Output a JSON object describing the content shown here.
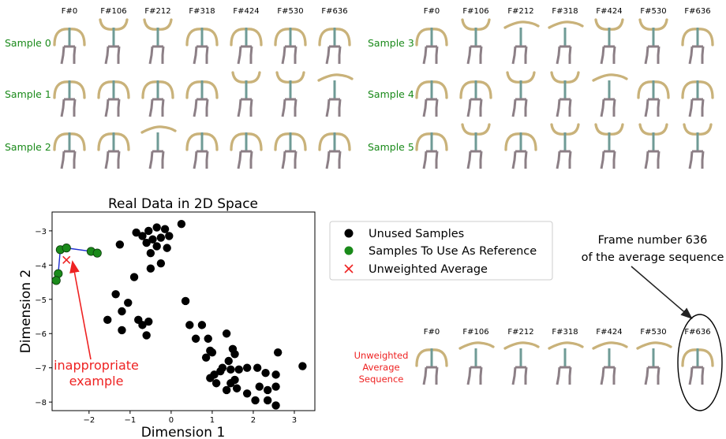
{
  "frame_labels": [
    "F#0",
    "F#106",
    "F#212",
    "F#318",
    "F#424",
    "F#530",
    "F#636"
  ],
  "samples_left": [
    "Sample 0",
    "Sample 1",
    "Sample 2"
  ],
  "samples_right": [
    "Sample 3",
    "Sample 4",
    "Sample 5"
  ],
  "average_sequence_label": [
    "Unweighted",
    "Average",
    "Sequence"
  ],
  "callout": {
    "line1": "Frame number 636",
    "line2": "of the average sequence"
  },
  "annotation": {
    "line1": "inappropriate",
    "line2": "example"
  },
  "colors": {
    "green_text": "#1a8a1a",
    "red_text": "#ee2222",
    "arms": "#c9b27a",
    "spine": "#6f9b96",
    "legs": "#8c7f86",
    "link": "#1f2fd0"
  },
  "chart_data": {
    "type": "scatter",
    "title": "Real Data in 2D Space",
    "xlabel": "Dimension 1",
    "ylabel": "Dimension 2",
    "xlim": [
      -2.9,
      3.5
    ],
    "ylim": [
      -8.25,
      -2.45
    ],
    "xticks": [
      "−2",
      "−1",
      "0",
      "1",
      "2",
      "3"
    ],
    "xtick_values": [
      -2,
      -1,
      0,
      1,
      2,
      3
    ],
    "yticks": [
      "−3",
      "−4",
      "−5",
      "−6",
      "−7",
      "−8"
    ],
    "ytick_values": [
      -3,
      -4,
      -5,
      -6,
      -7,
      -8
    ],
    "legend_position": "outside-right",
    "series": [
      {
        "name": "Unused Samples",
        "color": "#000000",
        "marker": "circle",
        "points": [
          [
            0.25,
            -2.8
          ],
          [
            -0.85,
            -3.05
          ],
          [
            -0.55,
            -3.0
          ],
          [
            -0.35,
            -2.9
          ],
          [
            -0.15,
            -2.95
          ],
          [
            -0.7,
            -3.15
          ],
          [
            -0.45,
            -3.25
          ],
          [
            -0.25,
            -3.2
          ],
          [
            -0.05,
            -3.15
          ],
          [
            -0.6,
            -3.35
          ],
          [
            -1.25,
            -3.4
          ],
          [
            -0.35,
            -3.45
          ],
          [
            -0.5,
            -3.65
          ],
          [
            -0.1,
            -3.5
          ],
          [
            -0.25,
            -3.95
          ],
          [
            -0.9,
            -4.35
          ],
          [
            -0.5,
            -4.1
          ],
          [
            -1.35,
            -4.85
          ],
          [
            -1.05,
            -5.1
          ],
          [
            -1.2,
            -5.35
          ],
          [
            -1.55,
            -5.6
          ],
          [
            -0.8,
            -5.6
          ],
          [
            -0.55,
            -5.65
          ],
          [
            -0.7,
            -5.75
          ],
          [
            -1.2,
            -5.9
          ],
          [
            -0.6,
            -6.05
          ],
          [
            0.35,
            -5.05
          ],
          [
            0.45,
            -5.75
          ],
          [
            0.75,
            -5.75
          ],
          [
            0.6,
            -6.15
          ],
          [
            0.9,
            -6.15
          ],
          [
            0.95,
            -6.5
          ],
          [
            1.0,
            -6.55
          ],
          [
            0.85,
            -6.7
          ],
          [
            1.35,
            -6.0
          ],
          [
            1.5,
            -6.45
          ],
          [
            1.55,
            -6.6
          ],
          [
            1.4,
            -6.8
          ],
          [
            1.25,
            -7.0
          ],
          [
            1.05,
            -7.2
          ],
          [
            1.45,
            -7.05
          ],
          [
            1.65,
            -7.05
          ],
          [
            1.85,
            -7.0
          ],
          [
            2.1,
            -7.0
          ],
          [
            2.3,
            -7.15
          ],
          [
            2.55,
            -7.2
          ],
          [
            2.6,
            -6.55
          ],
          [
            3.2,
            -6.95
          ],
          [
            0.95,
            -7.3
          ],
          [
            1.1,
            -7.45
          ],
          [
            1.45,
            -7.45
          ],
          [
            1.55,
            -7.35
          ],
          [
            1.35,
            -7.65
          ],
          [
            1.6,
            -7.6
          ],
          [
            1.85,
            -7.75
          ],
          [
            2.15,
            -7.55
          ],
          [
            2.35,
            -7.65
          ],
          [
            2.55,
            -7.55
          ],
          [
            2.35,
            -7.95
          ],
          [
            2.55,
            -8.1
          ],
          [
            2.05,
            -7.95
          ],
          [
            1.2,
            -7.1
          ]
        ]
      },
      {
        "name": "Samples To Use As Reference",
        "color": "#1a8a1a",
        "marker": "circle",
        "points": [
          [
            -2.7,
            -3.55
          ],
          [
            -2.55,
            -3.5
          ],
          [
            -1.95,
            -3.6
          ],
          [
            -1.8,
            -3.65
          ],
          [
            -2.75,
            -4.25
          ],
          [
            -2.8,
            -4.45
          ]
        ]
      },
      {
        "name": "Unweighted Average",
        "color": "#ee2222",
        "marker": "x",
        "points": [
          [
            -2.55,
            -3.85
          ]
        ]
      }
    ]
  }
}
